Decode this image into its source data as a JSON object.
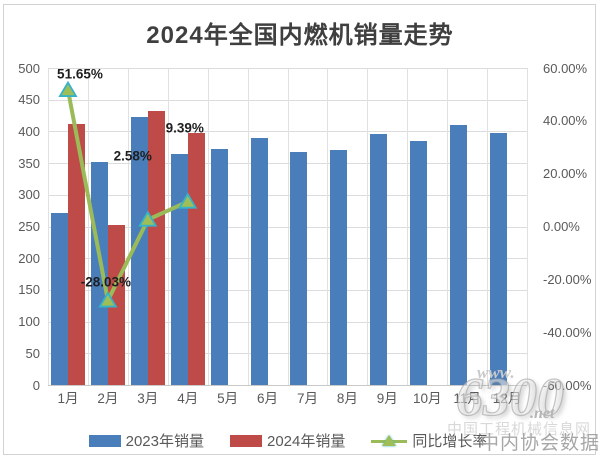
{
  "chart_data": {
    "type": "bar+line combo",
    "title": "2024年全国内燃机销量走势",
    "categories": [
      "1月",
      "2月",
      "3月",
      "4月",
      "5月",
      "6月",
      "7月",
      "8月",
      "9月",
      "10月",
      "11月",
      "12月"
    ],
    "series": [
      {
        "name": "2023年销量",
        "type": "bar",
        "color": "#4a7ebb",
        "values": [
          271,
          351,
          422,
          364,
          372,
          389,
          368,
          370,
          396,
          385,
          410,
          397
        ]
      },
      {
        "name": "2024年销量",
        "type": "bar",
        "color": "#be4b48",
        "values": [
          411,
          253,
          432,
          398,
          null,
          null,
          null,
          null,
          null,
          null,
          null,
          null
        ]
      },
      {
        "name": "同比增长率",
        "type": "line",
        "axis": "right",
        "color": "#9bbb59",
        "marker_fill": "#9fbe58",
        "marker_border": "#35b3c9",
        "values": [
          51.65,
          -28.03,
          2.58,
          9.39
        ],
        "point_labels": [
          "51.65%",
          "-28.03%",
          "2.58%",
          "9.39%"
        ]
      }
    ],
    "y_axis_left": {
      "min": 0,
      "max": 500,
      "step": 50,
      "tick_labels": [
        "0",
        "50",
        "100",
        "150",
        "200",
        "250",
        "300",
        "350",
        "400",
        "450",
        "500"
      ]
    },
    "y_axis_right": {
      "min": -60,
      "max": 60,
      "step": 20,
      "tick_labels": [
        "-60.00%",
        "-40.00%",
        "-20.00%",
        "0.00%",
        "20.00%",
        "40.00%",
        "60.00%"
      ]
    },
    "legend_position": "bottom",
    "grid": true
  },
  "watermark": {
    "www": "www.",
    "logo": "6300",
    "net": ".net",
    "site_name": "中国工程机械信息网",
    "data_credit": "中内协会数据"
  }
}
